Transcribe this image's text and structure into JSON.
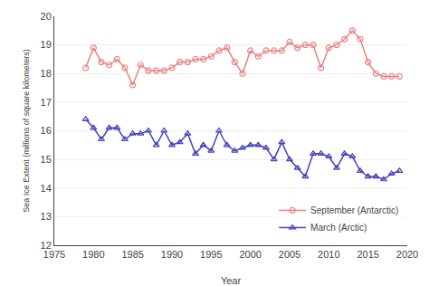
{
  "chart_data": {
    "type": "line",
    "x_label": "Year",
    "y_label": "Sea Ice Extent (millions of square kilometers)",
    "x": [
      1979,
      1980,
      1981,
      1982,
      1983,
      1984,
      1985,
      1986,
      1987,
      1988,
      1989,
      1990,
      1991,
      1992,
      1993,
      1994,
      1995,
      1996,
      1997,
      1998,
      1999,
      2000,
      2001,
      2002,
      2003,
      2004,
      2005,
      2006,
      2007,
      2008,
      2009,
      2010,
      2011,
      2012,
      2013,
      2014,
      2015,
      2016,
      2017,
      2018,
      2019
    ],
    "series": [
      {
        "name": "September (Antarctic)",
        "color": "#e8837f",
        "marker": "circle-open",
        "values": [
          18.2,
          18.9,
          18.4,
          18.3,
          18.5,
          18.2,
          17.6,
          18.3,
          18.1,
          18.1,
          18.1,
          18.2,
          18.4,
          18.4,
          18.5,
          18.5,
          18.6,
          18.8,
          18.9,
          18.4,
          18.0,
          18.8,
          18.6,
          18.8,
          18.8,
          18.8,
          19.1,
          18.9,
          19.0,
          19.0,
          18.2,
          18.9,
          19.0,
          19.2,
          19.5,
          19.2,
          18.4,
          18.0,
          17.9,
          17.9,
          17.9
        ]
      },
      {
        "name": "March (Arctic)",
        "color": "#4444bb",
        "marker": "triangle-up-open",
        "values": [
          16.4,
          16.1,
          15.7,
          16.1,
          16.1,
          15.7,
          15.9,
          15.9,
          16.0,
          15.5,
          16.0,
          15.5,
          15.6,
          15.9,
          15.2,
          15.5,
          15.3,
          16.0,
          15.5,
          15.3,
          15.4,
          15.5,
          15.5,
          15.4,
          15.0,
          15.6,
          15.0,
          14.7,
          14.4,
          15.2,
          15.2,
          15.1,
          14.7,
          15.2,
          15.1,
          14.6,
          14.4,
          14.4,
          14.3,
          14.5,
          14.6
        ]
      }
    ],
    "xlim": [
      1975,
      2020
    ],
    "xticks": [
      1975,
      1980,
      1985,
      1990,
      1995,
      2000,
      2005,
      2010,
      2015,
      2020
    ],
    "ylim": [
      12,
      20
    ],
    "yticks": [
      12,
      13,
      14,
      15,
      16,
      17,
      18,
      19,
      20
    ],
    "grid": "y",
    "legend": "lower right"
  }
}
